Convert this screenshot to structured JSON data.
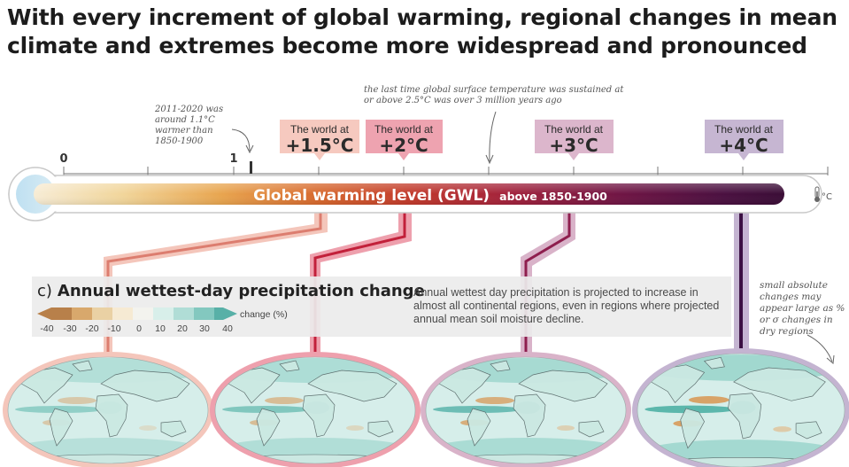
{
  "title": "With every increment of global warming, regional changes in mean climate and extremes become more widespread and pronounced",
  "thermometer": {
    "label_main": "Global warming level (GWL)",
    "label_sub": "above 1850-1900",
    "unit_icon": "thermometer-icon",
    "unit_text": "°C",
    "ticks": [
      "0",
      "1"
    ]
  },
  "annotations": {
    "present": "2011-2020 was around 1.1°C warmer than 1850-1900",
    "paleo": "the last time global surface temperature was sustained at or above 2.5°C was over 3 million years ago"
  },
  "levels": [
    {
      "prefix": "The world at",
      "value": "+1.5°C",
      "gwl": 1.5,
      "color": "#f6c9bf"
    },
    {
      "prefix": "The world at",
      "value": "+2°C",
      "gwl": 2,
      "color": "#eea3b0"
    },
    {
      "prefix": "The world at",
      "value": "+3°C",
      "gwl": 3,
      "color": "#dcb6cc"
    },
    {
      "prefix": "The world at",
      "value": "+4°C",
      "gwl": 4,
      "color": "#c6b6d2"
    }
  ],
  "panel": {
    "letter": "c)",
    "title": "Annual wettest-day precipitation change",
    "note": "Annual wettest day precipitation is projected to increase in almost all continental regions, even in regions where projected annual mean soil moisture decline.",
    "side_note": "small absolute changes may appear large as % or σ changes in dry regions"
  },
  "legend": {
    "unit": "change (%)",
    "labels": [
      "-40",
      "-30",
      "-20",
      "-10",
      "0",
      "10",
      "20",
      "30",
      "40"
    ],
    "colors": [
      "#b8804a",
      "#d8a86c",
      "#ead1a4",
      "#f6ead3",
      "#f3f3ee",
      "#d8efea",
      "#b0ddd6",
      "#83c8bf",
      "#58b0a7"
    ]
  },
  "chart_data": {
    "type": "heatmap",
    "title": "Annual wettest-day precipitation change",
    "colorbar": {
      "label": "change (%)",
      "range": [
        -40,
        40
      ],
      "ticks": [
        -40,
        -30,
        -20,
        -10,
        0,
        10,
        20,
        30,
        40
      ]
    },
    "panels": [
      "+1.5°C",
      "+2°C",
      "+3°C",
      "+4°C"
    ]
  }
}
